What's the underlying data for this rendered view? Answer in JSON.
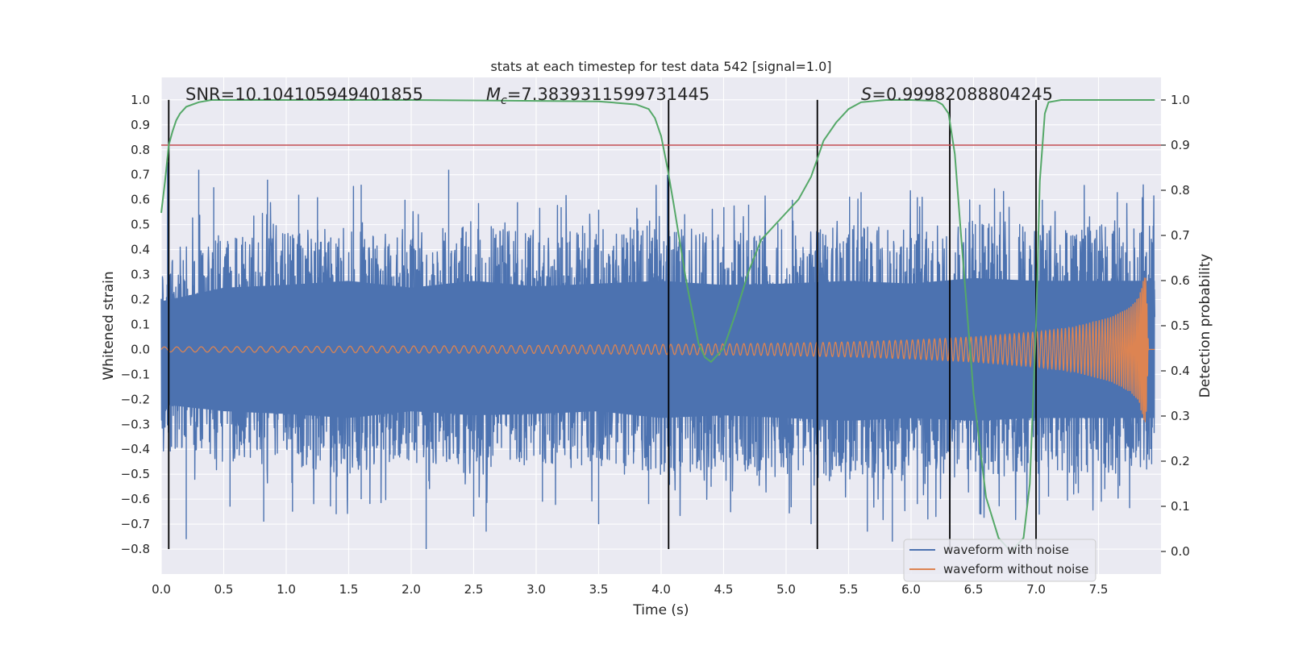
{
  "chart_data": {
    "type": "line",
    "title": "stats at each timestep for test data 542 [signal=1.0]",
    "xlabel": "Time (s)",
    "ylabel": "Whitened strain",
    "y2label": "Detection probability",
    "xlim": [
      0.0,
      8.0
    ],
    "ylim": [
      -0.9,
      1.09
    ],
    "y2lim": [
      -0.05,
      1.05
    ],
    "x_ticks": [
      "0.0",
      "0.5",
      "1.0",
      "1.5",
      "2.0",
      "2.5",
      "3.0",
      "3.5",
      "4.0",
      "4.5",
      "5.0",
      "5.5",
      "6.0",
      "6.5",
      "7.0",
      "7.5"
    ],
    "y_ticks": [
      "1.0",
      "0.9",
      "0.8",
      "0.7",
      "0.6",
      "0.5",
      "0.4",
      "0.3",
      "0.2",
      "0.1",
      "0.0",
      "−0.1",
      "−0.2",
      "−0.3",
      "−0.4",
      "−0.5",
      "−0.6",
      "−0.7",
      "−0.8"
    ],
    "y2_ticks": [
      "1.0",
      "0.9",
      "0.8",
      "0.7",
      "0.6",
      "0.5",
      "0.4",
      "0.3",
      "0.2",
      "0.1",
      "0.0"
    ],
    "annotations": {
      "snr": "SNR=10.104105949401855",
      "mc_symbol": "M",
      "mc_sub": "c",
      "mc_value": "=7.3839311599731445",
      "s_symbol": "S",
      "s_value": "=0.99982088804245"
    },
    "threshold": 0.9,
    "segment_boundaries": [
      0.06,
      4.06,
      5.25,
      6.31,
      7.0
    ],
    "segment_boundaries_y": [
      -0.8,
      1.0
    ],
    "noise_envelope": {
      "x": [
        0.0,
        0.5,
        1.0,
        1.5,
        2.0,
        2.5,
        3.0,
        3.5,
        4.0,
        4.5,
        5.0,
        5.5,
        6.0,
        6.5,
        7.0,
        7.5,
        7.95
      ],
      "upper": [
        0.35,
        0.45,
        0.47,
        0.5,
        0.45,
        0.5,
        0.46,
        0.48,
        0.5,
        0.47,
        0.48,
        0.5,
        0.48,
        0.52,
        0.5,
        0.5,
        0.5
      ],
      "lower": [
        -0.4,
        -0.45,
        -0.47,
        -0.5,
        -0.45,
        -0.48,
        -0.47,
        -0.45,
        -0.5,
        -0.48,
        -0.5,
        -0.52,
        -0.5,
        -0.52,
        -0.5,
        -0.5,
        -0.5
      ],
      "spikes": [
        [
          0.05,
          0.75
        ],
        [
          0.3,
          0.72
        ],
        [
          0.42,
          0.65
        ],
        [
          0.85,
          0.68
        ],
        [
          1.1,
          0.62
        ],
        [
          1.25,
          0.61
        ],
        [
          1.6,
          0.66
        ],
        [
          1.95,
          0.6
        ],
        [
          2.3,
          0.72
        ],
        [
          2.85,
          0.59
        ],
        [
          3.2,
          0.57
        ],
        [
          3.5,
          0.56
        ],
        [
          4.05,
          0.7
        ],
        [
          4.7,
          0.58
        ],
        [
          5.05,
          0.6
        ],
        [
          5.6,
          0.63
        ],
        [
          6.05,
          0.61
        ],
        [
          6.55,
          0.58
        ],
        [
          7.05,
          0.6
        ],
        [
          7.65,
          0.63
        ],
        [
          7.85,
          0.61
        ],
        [
          0.2,
          -0.76
        ],
        [
          0.55,
          -0.63
        ],
        [
          0.82,
          -0.69
        ],
        [
          1.05,
          -0.65
        ],
        [
          1.4,
          -0.66
        ],
        [
          1.6,
          -0.6
        ],
        [
          2.12,
          -0.8
        ],
        [
          2.5,
          -0.67
        ],
        [
          2.6,
          -0.73
        ],
        [
          3.05,
          -0.61
        ],
        [
          3.5,
          -0.7
        ],
        [
          3.9,
          -0.62
        ],
        [
          4.4,
          -0.55
        ],
        [
          5.2,
          -0.7
        ],
        [
          5.65,
          -0.73
        ],
        [
          5.85,
          -0.77
        ],
        [
          6.05,
          -0.62
        ],
        [
          6.55,
          -0.66
        ],
        [
          7.1,
          -0.59
        ],
        [
          7.55,
          -0.56
        ]
      ]
    },
    "clean_waveform": {
      "amplitude_x": [
        0.0,
        1.0,
        2.0,
        3.0,
        4.0,
        5.0,
        5.5,
        6.0,
        6.5,
        7.0,
        7.3,
        7.6,
        7.75,
        7.82,
        7.86,
        7.88,
        7.9,
        7.95
      ],
      "amplitude": [
        0.01,
        0.012,
        0.014,
        0.016,
        0.02,
        0.025,
        0.03,
        0.038,
        0.05,
        0.07,
        0.09,
        0.13,
        0.17,
        0.21,
        0.28,
        0.3,
        0.0,
        0.0
      ],
      "frequency_x": [
        0.0,
        2.0,
        4.0,
        6.0,
        7.0,
        7.5,
        7.8,
        7.9
      ],
      "frequency_hz": [
        10,
        12,
        16,
        22,
        28,
        40,
        65,
        110
      ]
    },
    "series": [
      {
        "name": "waveform with noise",
        "color": "#4c72b0"
      },
      {
        "name": "waveform without noise",
        "color": "#dd8452"
      },
      {
        "name": "detection probability",
        "color": "#55a868",
        "x": [
          0.0,
          0.03,
          0.06,
          0.09,
          0.12,
          0.15,
          0.2,
          0.3,
          0.4,
          0.6,
          1.0,
          2.0,
          3.0,
          3.5,
          3.8,
          3.9,
          3.95,
          4.0,
          4.05,
          4.1,
          4.2,
          4.3,
          4.35,
          4.4,
          4.5,
          4.6,
          4.7,
          4.8,
          5.0,
          5.1,
          5.2,
          5.25,
          5.3,
          5.4,
          5.5,
          5.6,
          5.8,
          6.0,
          6.2,
          6.25,
          6.3,
          6.35,
          6.4,
          6.5,
          6.6,
          6.7,
          6.8,
          6.9,
          6.95,
          7.0,
          7.03,
          7.07,
          7.1,
          7.2,
          7.4,
          7.6,
          7.95
        ],
        "y": [
          0.75,
          0.82,
          0.9,
          0.93,
          0.955,
          0.97,
          0.985,
          0.995,
          1.0,
          1.0,
          1.0,
          1.0,
          0.998,
          0.997,
          0.99,
          0.98,
          0.96,
          0.92,
          0.85,
          0.77,
          0.6,
          0.46,
          0.43,
          0.42,
          0.45,
          0.53,
          0.62,
          0.69,
          0.75,
          0.78,
          0.83,
          0.87,
          0.91,
          0.95,
          0.98,
          0.995,
          1.0,
          1.0,
          0.998,
          0.99,
          0.97,
          0.88,
          0.7,
          0.35,
          0.12,
          0.03,
          0.0,
          0.03,
          0.15,
          0.5,
          0.82,
          0.97,
          0.995,
          1.0,
          1.0,
          1.0,
          1.0
        ]
      }
    ],
    "legend": {
      "position": "lower-right",
      "entries": [
        "waveform with noise",
        "waveform without noise"
      ]
    },
    "colors": {
      "noise": "#4c72b0",
      "clean": "#dd8452",
      "probability": "#55a868",
      "threshold": "#c44e52",
      "boundary": "#000000",
      "plot_bg": "#eaeaf2",
      "grid": "#ffffff"
    }
  }
}
